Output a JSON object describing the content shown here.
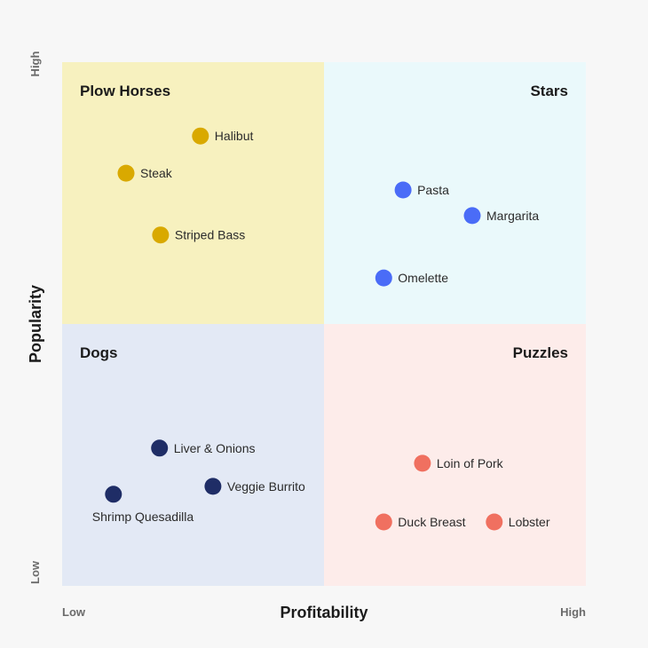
{
  "chart_data": {
    "type": "scatter",
    "title": "",
    "xlabel": "Profitability",
    "ylabel": "Popularity",
    "x_ticks": {
      "low": "Low",
      "high": "High"
    },
    "y_ticks": {
      "low": "Low",
      "high": "High"
    },
    "xlim": [
      0,
      100
    ],
    "ylim": [
      0,
      100
    ],
    "grid": false,
    "quadrants": [
      {
        "key": "plow",
        "label": "Plow Horses",
        "color": "#f7f1bf",
        "dot_color": "#d9a900"
      },
      {
        "key": "stars",
        "label": "Stars",
        "color": "#eaf9fb",
        "dot_color": "#4a6cf7"
      },
      {
        "key": "dogs",
        "label": "Dogs",
        "color": "#e3e9f5",
        "dot_color": "#1f2d66"
      },
      {
        "key": "puzzles",
        "label": "Puzzles",
        "color": "#fdecea",
        "dot_color": "#f07060"
      }
    ],
    "points": [
      {
        "name": "Halibut",
        "quadrant": "plow",
        "x": 26.4,
        "y": 85.9
      },
      {
        "name": "Steak",
        "quadrant": "plow",
        "x": 12.2,
        "y": 78.8
      },
      {
        "name": "Striped Bass",
        "quadrant": "plow",
        "x": 18.8,
        "y": 67.0
      },
      {
        "name": "Pasta",
        "quadrant": "stars",
        "x": 65.1,
        "y": 75.6
      },
      {
        "name": "Margarita",
        "quadrant": "stars",
        "x": 78.3,
        "y": 70.7
      },
      {
        "name": "Omelette",
        "quadrant": "stars",
        "x": 61.4,
        "y": 58.8
      },
      {
        "name": "Liver & Onions",
        "quadrant": "dogs",
        "x": 18.6,
        "y": 26.3
      },
      {
        "name": "Veggie Burrito",
        "quadrant": "dogs",
        "x": 28.8,
        "y": 19.0
      },
      {
        "name": "Shrimp Quesadilla",
        "quadrant": "dogs",
        "x": 9.8,
        "y": 17.5
      },
      {
        "name": "Loin of Pork",
        "quadrant": "puzzles",
        "x": 68.8,
        "y": 23.4
      },
      {
        "name": "Duck Breast",
        "quadrant": "puzzles",
        "x": 61.4,
        "y": 12.2
      },
      {
        "name": "Lobster",
        "quadrant": "puzzles",
        "x": 82.5,
        "y": 12.2
      }
    ]
  }
}
